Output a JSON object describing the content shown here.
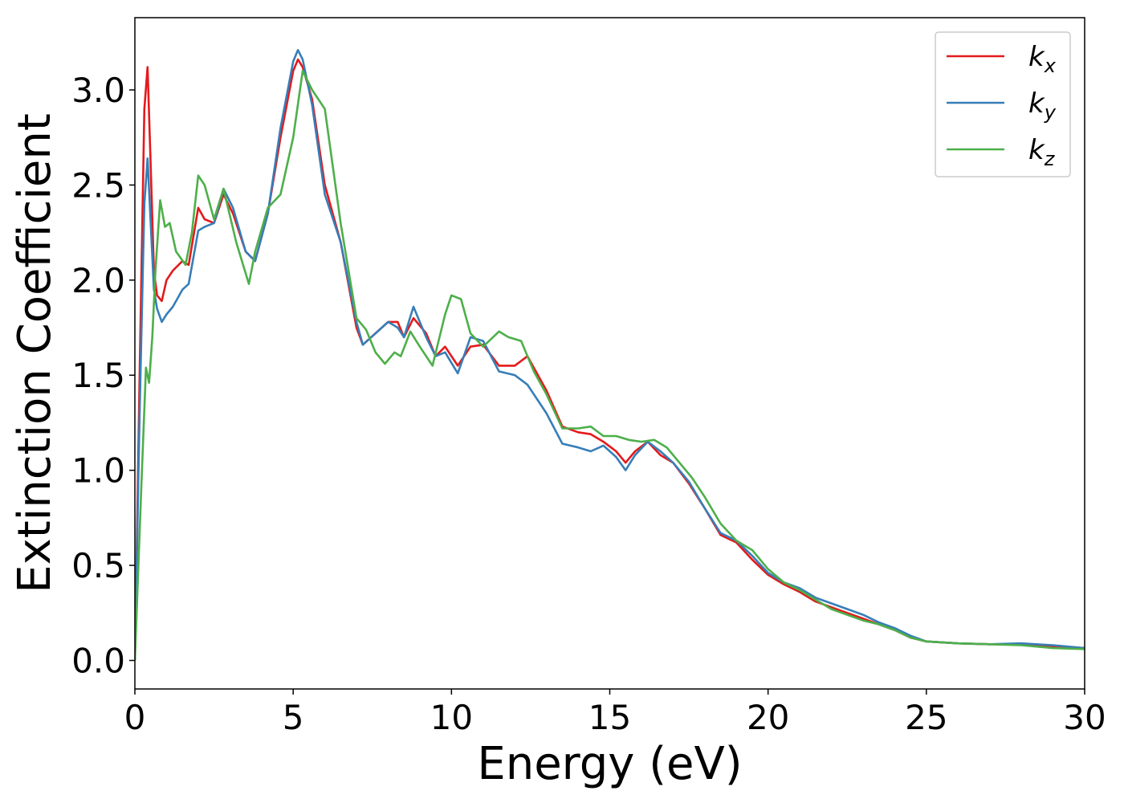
{
  "chart_data": {
    "type": "line",
    "title": "",
    "xlabel": "Energy (eV)",
    "ylabel": "Extinction Coefficient",
    "xlim": [
      0,
      30
    ],
    "ylim": [
      -0.15,
      3.38
    ],
    "xticks": [
      0,
      5,
      10,
      15,
      20,
      25,
      30
    ],
    "xtick_labels": [
      "0",
      "5",
      "10",
      "15",
      "20",
      "25",
      "30"
    ],
    "yticks": [
      0.0,
      0.5,
      1.0,
      1.5,
      2.0,
      2.5,
      3.0
    ],
    "ytick_labels": [
      "0.0",
      "0.5",
      "1.0",
      "1.5",
      "2.0",
      "2.5",
      "3.0"
    ],
    "grid": false,
    "legend_position": "top-right",
    "series": [
      {
        "name": "k_x",
        "label_base": "k",
        "label_sub": "x",
        "color": "#e41a1c",
        "x": [
          0,
          0.15,
          0.3,
          0.4,
          0.5,
          0.6,
          0.7,
          0.85,
          1.0,
          1.2,
          1.5,
          1.7,
          2.0,
          2.2,
          2.5,
          2.8,
          3.1,
          3.5,
          3.8,
          4.2,
          4.6,
          5.0,
          5.15,
          5.3,
          5.6,
          6.0,
          6.5,
          7.0,
          7.2,
          7.6,
          8.0,
          8.3,
          8.5,
          8.8,
          9.2,
          9.5,
          9.8,
          10.2,
          10.6,
          11.0,
          11.5,
          12.0,
          12.4,
          13.0,
          13.5,
          14.0,
          14.4,
          14.8,
          15.2,
          15.5,
          15.8,
          16.2,
          16.6,
          17.0,
          17.5,
          18.0,
          18.5,
          19.0,
          19.5,
          20.0,
          20.5,
          21.0,
          21.5,
          22.0,
          22.5,
          23.0,
          23.5,
          24.0,
          24.5,
          25.0,
          26.0,
          27.0,
          28.0,
          29.0,
          30.0
        ],
        "y": [
          0.0,
          1.5,
          2.9,
          3.12,
          2.6,
          2.05,
          1.92,
          1.89,
          2.0,
          2.05,
          2.1,
          2.08,
          2.38,
          2.32,
          2.3,
          2.45,
          2.35,
          2.15,
          2.1,
          2.35,
          2.75,
          3.1,
          3.16,
          3.12,
          2.95,
          2.5,
          2.2,
          1.75,
          1.66,
          1.72,
          1.78,
          1.78,
          1.7,
          1.8,
          1.72,
          1.6,
          1.65,
          1.55,
          1.65,
          1.66,
          1.55,
          1.55,
          1.6,
          1.42,
          1.23,
          1.2,
          1.19,
          1.15,
          1.1,
          1.04,
          1.1,
          1.15,
          1.08,
          1.04,
          0.93,
          0.8,
          0.66,
          0.62,
          0.53,
          0.45,
          0.4,
          0.36,
          0.31,
          0.28,
          0.25,
          0.22,
          0.19,
          0.16,
          0.12,
          0.1,
          0.09,
          0.085,
          0.085,
          0.075,
          0.065
        ]
      },
      {
        "name": "k_y",
        "label_base": "k",
        "label_sub": "y",
        "color": "#377eb8",
        "x": [
          0,
          0.15,
          0.3,
          0.4,
          0.5,
          0.6,
          0.7,
          0.85,
          1.0,
          1.2,
          1.5,
          1.7,
          2.0,
          2.2,
          2.5,
          2.8,
          3.1,
          3.5,
          3.8,
          4.2,
          4.6,
          5.0,
          5.15,
          5.3,
          5.6,
          6.0,
          6.5,
          7.0,
          7.2,
          7.6,
          8.0,
          8.3,
          8.5,
          8.8,
          9.2,
          9.5,
          9.8,
          10.2,
          10.6,
          11.0,
          11.5,
          12.0,
          12.4,
          13.0,
          13.5,
          14.0,
          14.4,
          14.8,
          15.2,
          15.5,
          15.8,
          16.2,
          16.6,
          17.0,
          17.5,
          18.0,
          18.5,
          19.0,
          19.5,
          20.0,
          20.5,
          21.0,
          21.5,
          22.0,
          22.5,
          23.0,
          23.5,
          24.0,
          24.5,
          25.0,
          26.0,
          27.0,
          28.0,
          29.0,
          30.0
        ],
        "y": [
          0.0,
          1.3,
          2.4,
          2.64,
          2.3,
          1.95,
          1.85,
          1.78,
          1.82,
          1.86,
          1.95,
          1.98,
          2.26,
          2.28,
          2.3,
          2.48,
          2.38,
          2.15,
          2.1,
          2.35,
          2.8,
          3.15,
          3.21,
          3.16,
          2.92,
          2.45,
          2.2,
          1.78,
          1.66,
          1.72,
          1.78,
          1.75,
          1.7,
          1.86,
          1.7,
          1.6,
          1.62,
          1.51,
          1.7,
          1.68,
          1.52,
          1.5,
          1.45,
          1.3,
          1.14,
          1.12,
          1.1,
          1.13,
          1.07,
          1.0,
          1.08,
          1.15,
          1.1,
          1.04,
          0.94,
          0.8,
          0.67,
          0.63,
          0.55,
          0.46,
          0.41,
          0.38,
          0.33,
          0.3,
          0.27,
          0.24,
          0.2,
          0.17,
          0.13,
          0.1,
          0.09,
          0.085,
          0.09,
          0.08,
          0.065
        ]
      },
      {
        "name": "k_z",
        "label_base": "k",
        "label_sub": "z",
        "color": "#4daf4a",
        "x": [
          0,
          0.2,
          0.35,
          0.45,
          0.55,
          0.65,
          0.8,
          0.95,
          1.1,
          1.3,
          1.6,
          1.8,
          2.0,
          2.2,
          2.5,
          2.8,
          3.2,
          3.6,
          3.8,
          4.2,
          4.6,
          5.0,
          5.3,
          5.6,
          6.0,
          6.5,
          7.0,
          7.3,
          7.6,
          7.9,
          8.2,
          8.4,
          8.7,
          9.0,
          9.4,
          9.8,
          10.0,
          10.3,
          10.6,
          11.0,
          11.5,
          11.8,
          12.2,
          12.6,
          13.0,
          13.5,
          14.0,
          14.4,
          14.8,
          15.2,
          15.6,
          16.0,
          16.4,
          16.8,
          17.2,
          17.6,
          18.0,
          18.5,
          19.0,
          19.5,
          20.0,
          20.5,
          21.0,
          21.5,
          22.0,
          22.5,
          23.0,
          23.5,
          24.0,
          24.5,
          25.0,
          26.0,
          27.0,
          28.0,
          29.0,
          30.0
        ],
        "y": [
          0.0,
          0.9,
          1.54,
          1.46,
          1.7,
          2.05,
          2.42,
          2.28,
          2.3,
          2.15,
          2.08,
          2.25,
          2.55,
          2.5,
          2.32,
          2.48,
          2.2,
          1.98,
          2.15,
          2.38,
          2.45,
          2.75,
          3.1,
          3.0,
          2.9,
          2.3,
          1.8,
          1.74,
          1.62,
          1.56,
          1.62,
          1.6,
          1.73,
          1.65,
          1.55,
          1.82,
          1.92,
          1.9,
          1.72,
          1.65,
          1.73,
          1.7,
          1.68,
          1.52,
          1.4,
          1.22,
          1.22,
          1.23,
          1.18,
          1.18,
          1.16,
          1.15,
          1.16,
          1.12,
          1.04,
          0.96,
          0.86,
          0.72,
          0.63,
          0.58,
          0.48,
          0.41,
          0.37,
          0.32,
          0.27,
          0.24,
          0.21,
          0.19,
          0.16,
          0.12,
          0.1,
          0.09,
          0.085,
          0.08,
          0.065,
          0.06
        ]
      }
    ]
  }
}
